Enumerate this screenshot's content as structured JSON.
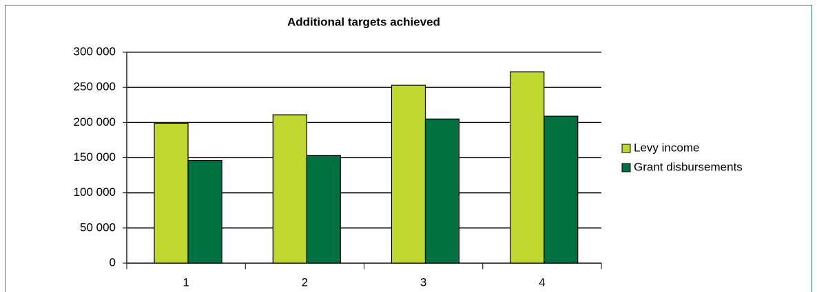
{
  "chart_data": {
    "type": "bar",
    "title": "Additional targets achieved",
    "categories": [
      "1",
      "2",
      "3",
      "4"
    ],
    "series": [
      {
        "name": "Levy income",
        "color": "#bfd730",
        "values": [
          199000,
          211000,
          253000,
          272000
        ]
      },
      {
        "name": "Grant disbursements",
        "color": "#007040",
        "values": [
          146000,
          153000,
          205000,
          209000
        ]
      }
    ],
    "ylim": [
      0,
      300000
    ],
    "yticks": [
      0,
      {
        "value": 50000,
        "label": "50 000"
      },
      {
        "value": 100000,
        "label": "100 000"
      },
      {
        "value": 150000,
        "label": "150 000"
      },
      {
        "value": 200000,
        "label": "200 000"
      },
      {
        "value": 250000,
        "label": "250 000"
      },
      {
        "value": 300000,
        "label": "300 000"
      }
    ],
    "grid": true,
    "legend": "right"
  }
}
